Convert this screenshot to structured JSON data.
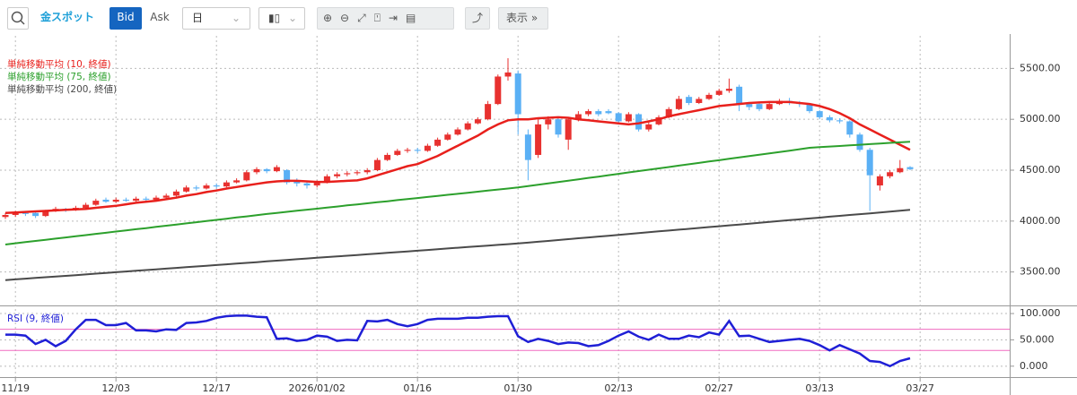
{
  "toolbar": {
    "symbol": "金スポット",
    "bid": "Bid",
    "ask": "Ask",
    "period": "日",
    "display": "表示"
  },
  "chart_data": [
    {
      "type": "candlestick",
      "categories": [
        null,
        "11/19",
        null,
        null,
        null,
        null,
        null,
        null,
        null,
        null,
        null,
        "12/03",
        null,
        null,
        null,
        null,
        null,
        null,
        null,
        null,
        null,
        "12/17",
        null,
        null,
        null,
        null,
        null,
        null,
        null,
        null,
        null,
        "2026/01/02",
        null,
        null,
        null,
        null,
        null,
        null,
        null,
        null,
        null,
        "01/16",
        null,
        null,
        null,
        null,
        null,
        null,
        null,
        null,
        null,
        "01/30",
        null,
        null,
        null,
        null,
        null,
        null,
        null,
        null,
        null,
        "02/13",
        null,
        null,
        null,
        null,
        null,
        null,
        null,
        null,
        null,
        "02/27",
        null,
        null,
        null,
        null,
        null,
        null,
        null,
        null,
        null,
        "03/13",
        null,
        null,
        null,
        null,
        null,
        null,
        null,
        null,
        null,
        "03/27"
      ],
      "candles": [
        [
          4040,
          4080,
          4020,
          4060
        ],
        [
          4060,
          4100,
          4040,
          4080
        ],
        [
          4080,
          4100,
          4050,
          4070
        ],
        [
          4080,
          4090,
          4030,
          4050
        ],
        [
          4050,
          4110,
          4040,
          4100
        ],
        [
          4100,
          4140,
          4090,
          4120
        ],
        [
          4120,
          4130,
          4090,
          4110
        ],
        [
          4110,
          4150,
          4100,
          4130
        ],
        [
          4130,
          4180,
          4120,
          4160
        ],
        [
          4160,
          4220,
          4150,
          4200
        ],
        [
          4210,
          4230,
          4180,
          4190
        ],
        [
          4190,
          4230,
          4180,
          4210
        ],
        [
          4210,
          4230,
          4190,
          4200
        ],
        [
          4200,
          4240,
          4190,
          4220
        ],
        [
          4220,
          4240,
          4200,
          4210
        ],
        [
          4210,
          4250,
          4200,
          4230
        ],
        [
          4230,
          4270,
          4220,
          4250
        ],
        [
          4250,
          4310,
          4240,
          4290
        ],
        [
          4290,
          4350,
          4280,
          4330
        ],
        [
          4330,
          4350,
          4300,
          4320
        ],
        [
          4320,
          4370,
          4310,
          4350
        ],
        [
          4350,
          4370,
          4320,
          4340
        ],
        [
          4340,
          4400,
          4330,
          4380
        ],
        [
          4380,
          4420,
          4370,
          4400
        ],
        [
          4400,
          4500,
          4390,
          4480
        ],
        [
          4480,
          4530,
          4460,
          4510
        ],
        [
          4510,
          4520,
          4470,
          4490
        ],
        [
          4490,
          4550,
          4480,
          4530
        ],
        [
          4500,
          4510,
          4360,
          4380
        ],
        [
          4390,
          4420,
          4340,
          4370
        ],
        [
          4370,
          4380,
          4320,
          4350
        ],
        [
          4350,
          4400,
          4330,
          4380
        ],
        [
          4380,
          4460,
          4370,
          4440
        ],
        [
          4440,
          4480,
          4420,
          4460
        ],
        [
          4460,
          4490,
          4440,
          4470
        ],
        [
          4470,
          4500,
          4450,
          4480
        ],
        [
          4480,
          4520,
          4460,
          4500
        ],
        [
          4500,
          4620,
          4490,
          4600
        ],
        [
          4600,
          4670,
          4590,
          4650
        ],
        [
          4650,
          4710,
          4640,
          4690
        ],
        [
          4690,
          4720,
          4670,
          4700
        ],
        [
          4700,
          4720,
          4670,
          4690
        ],
        [
          4690,
          4760,
          4680,
          4740
        ],
        [
          4740,
          4820,
          4730,
          4800
        ],
        [
          4800,
          4870,
          4790,
          4850
        ],
        [
          4850,
          4920,
          4840,
          4900
        ],
        [
          4900,
          4980,
          4890,
          4960
        ],
        [
          4960,
          5020,
          4950,
          5000
        ],
        [
          5000,
          5180,
          4990,
          5150
        ],
        [
          5150,
          5440,
          5140,
          5420
        ],
        [
          5420,
          5600,
          5380,
          5460
        ],
        [
          5450,
          5480,
          4850,
          5050
        ],
        [
          4850,
          4900,
          4400,
          4600
        ],
        [
          4650,
          5000,
          4620,
          4950
        ],
        [
          4950,
          5030,
          4900,
          5000
        ],
        [
          5000,
          5020,
          4820,
          4850
        ],
        [
          4800,
          5020,
          4700,
          5000
        ],
        [
          5000,
          5080,
          4980,
          5050
        ],
        [
          5050,
          5100,
          5030,
          5080
        ],
        [
          5080,
          5100,
          5030,
          5050
        ],
        [
          5080,
          5100,
          5050,
          5060
        ],
        [
          5060,
          5070,
          4960,
          4980
        ],
        [
          4980,
          5070,
          4970,
          5050
        ],
        [
          5050,
          5060,
          4880,
          4900
        ],
        [
          4900,
          4970,
          4880,
          4950
        ],
        [
          4950,
          5040,
          4940,
          5020
        ],
        [
          5020,
          5120,
          5010,
          5100
        ],
        [
          5100,
          5230,
          5090,
          5200
        ],
        [
          5220,
          5240,
          5140,
          5160
        ],
        [
          5160,
          5220,
          5150,
          5200
        ],
        [
          5200,
          5260,
          5190,
          5240
        ],
        [
          5240,
          5300,
          5230,
          5280
        ],
        [
          5280,
          5400,
          5260,
          5300
        ],
        [
          5320,
          5340,
          5080,
          5150
        ],
        [
          5150,
          5170,
          5090,
          5120
        ],
        [
          5150,
          5160,
          5080,
          5100
        ],
        [
          5100,
          5170,
          5090,
          5150
        ],
        [
          5150,
          5200,
          5140,
          5180
        ],
        [
          5180,
          5210,
          5140,
          5160
        ],
        [
          5160,
          5180,
          5120,
          5150
        ],
        [
          5150,
          5160,
          5060,
          5080
        ],
        [
          5080,
          5090,
          5000,
          5020
        ],
        [
          5020,
          5040,
          4970,
          4990
        ],
        [
          4990,
          5010,
          4960,
          4980
        ],
        [
          4980,
          4990,
          4820,
          4850
        ],
        [
          4850,
          4870,
          4680,
          4700
        ],
        [
          4700,
          4720,
          4100,
          4450
        ],
        [
          4350,
          4460,
          4300,
          4440
        ],
        [
          4440,
          4500,
          4420,
          4480
        ],
        [
          4480,
          4600,
          4470,
          4520
        ],
        [
          4530,
          4540,
          4500,
          4510
        ],
        null
      ],
      "up_color": "#e8312f",
      "down_color": "#5ab0f5",
      "series": [
        {
          "name": "単純移動平均 (10, 終値)",
          "color": "#e8201c",
          "values": [
            4080,
            4085,
            4090,
            4095,
            4100,
            4105,
            4110,
            4115,
            4120,
            4130,
            4140,
            4150,
            4165,
            4180,
            4190,
            4200,
            4215,
            4230,
            4250,
            4265,
            4285,
            4300,
            4320,
            4335,
            4350,
            4365,
            4380,
            4390,
            4395,
            4395,
            4390,
            4385,
            4385,
            4390,
            4395,
            4400,
            4420,
            4450,
            4480,
            4510,
            4540,
            4560,
            4600,
            4640,
            4690,
            4740,
            4790,
            4840,
            4900,
            4950,
            4990,
            5000,
            5000,
            5010,
            5015,
            5020,
            5015,
            5000,
            4990,
            4980,
            4970,
            4960,
            4950,
            4960,
            4980,
            5000,
            5030,
            5050,
            5070,
            5090,
            5110,
            5130,
            5140,
            5150,
            5160,
            5165,
            5170,
            5170,
            5170,
            5160,
            5150,
            5130,
            5100,
            5060,
            5010,
            4950,
            4900,
            4850,
            4800,
            4750,
            4700,
            null
          ]
        },
        {
          "name": "単純移動平均 (75, 終値)",
          "color": "#2ca02c",
          "values": [
            3770,
            3782,
            3793,
            3805,
            3816,
            3828,
            3839,
            3851,
            3862,
            3874,
            3885,
            3897,
            3908,
            3920,
            3931,
            3943,
            3954,
            3966,
            3977,
            3989,
            4000,
            4012,
            4023,
            4035,
            4046,
            4058,
            4070,
            4080,
            4091,
            4101,
            4112,
            4122,
            4133,
            4143,
            4154,
            4164,
            4174,
            4185,
            4195,
            4206,
            4216,
            4226,
            4237,
            4247,
            4258,
            4268,
            4278,
            4289,
            4299,
            4310,
            4320,
            4330,
            4343,
            4357,
            4370,
            4384,
            4397,
            4410,
            4424,
            4437,
            4451,
            4464,
            4478,
            4491,
            4504,
            4518,
            4531,
            4545,
            4558,
            4571,
            4585,
            4598,
            4612,
            4625,
            4639,
            4652,
            4665,
            4679,
            4692,
            4706,
            4720,
            4726,
            4732,
            4738,
            4744,
            4750,
            4756,
            4762,
            4768,
            4774,
            4780,
            null
          ]
        },
        {
          "name": "単純移動平均 (200, 終値)",
          "color": "#4a4a4a",
          "values": [
            3420,
            3427,
            3434,
            3441,
            3448,
            3455,
            3462,
            3469,
            3476,
            3484,
            3491,
            3498,
            3505,
            3512,
            3519,
            3526,
            3533,
            3540,
            3547,
            3554,
            3561,
            3568,
            3575,
            3582,
            3589,
            3596,
            3604,
            3611,
            3618,
            3625,
            3632,
            3639,
            3646,
            3653,
            3660,
            3667,
            3674,
            3681,
            3688,
            3695,
            3702,
            3709,
            3716,
            3724,
            3731,
            3738,
            3745,
            3752,
            3759,
            3766,
            3773,
            3780,
            3788,
            3797,
            3805,
            3814,
            3822,
            3831,
            3839,
            3848,
            3856,
            3865,
            3873,
            3882,
            3890,
            3899,
            3907,
            3916,
            3924,
            3932,
            3941,
            3949,
            3958,
            3966,
            3975,
            3983,
            3992,
            4000,
            4009,
            4017,
            4026,
            4034,
            4043,
            4051,
            4060,
            4068,
            4076,
            4085,
            4093,
            4102,
            4110,
            null
          ]
        }
      ],
      "ylim": [
        3180,
        5820
      ],
      "yticks": [
        {
          "value": 3500,
          "label": "3500.00"
        },
        {
          "value": 4000,
          "label": "4000.00"
        },
        {
          "value": 4500,
          "label": "4500.00"
        },
        {
          "value": 5000,
          "label": "5000.00"
        },
        {
          "value": 5500,
          "label": "5500.00"
        }
      ],
      "grid": true
    },
    {
      "type": "line",
      "series": [
        {
          "name": "RSI (9, 終値)",
          "color": "#1f1fd6",
          "values": [
            60,
            60,
            58,
            42,
            50,
            38,
            48,
            70,
            88,
            88,
            78,
            78,
            82,
            68,
            68,
            66,
            70,
            69,
            82,
            83,
            86,
            92,
            95,
            96,
            96,
            94,
            93,
            52,
            53,
            48,
            50,
            58,
            56,
            48,
            50,
            49,
            86,
            85,
            88,
            80,
            76,
            80,
            88,
            90,
            90,
            90,
            92,
            92,
            94,
            95,
            95,
            57,
            46,
            52,
            48,
            42,
            45,
            44,
            38,
            40,
            48,
            58,
            66,
            56,
            50,
            60,
            52,
            52,
            58,
            55,
            64,
            60,
            86,
            57,
            58,
            52,
            46,
            48,
            50,
            52,
            48,
            40,
            30,
            40,
            32,
            24,
            10,
            8,
            0,
            10,
            15,
            null
          ]
        }
      ],
      "ylim": [
        -19,
        112
      ],
      "yticks": [
        {
          "value": 0,
          "label": "0.000"
        },
        {
          "value": 50,
          "label": "50.000"
        },
        {
          "value": 100,
          "label": "100.000"
        }
      ],
      "levels": [
        70,
        30
      ],
      "level_color": "#f06bc0",
      "grid": true
    }
  ]
}
